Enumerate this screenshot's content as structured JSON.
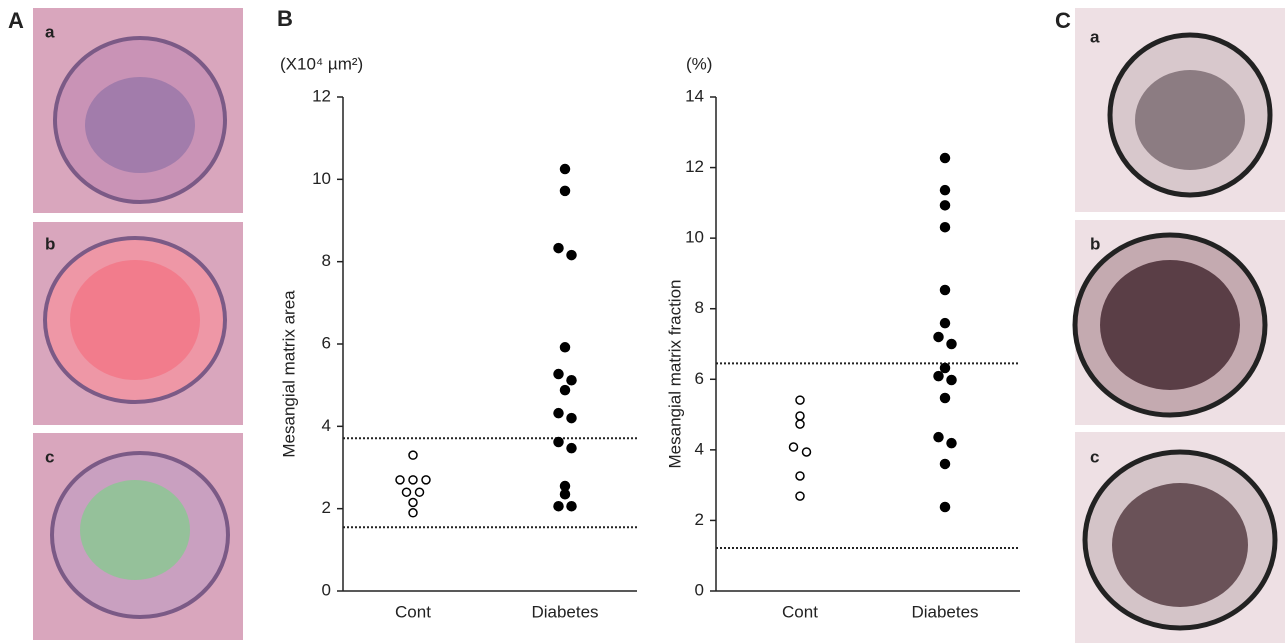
{
  "figure": {
    "panel_a": {
      "label": "A",
      "tiles": [
        "a",
        "b",
        "c"
      ]
    },
    "panel_b": {
      "label": "B"
    },
    "panel_c": {
      "label": "C",
      "tiles": [
        "a",
        "b",
        "c"
      ]
    }
  },
  "chart_data": [
    {
      "type": "strip",
      "unit_label": "(X10⁴ µm²)",
      "y_label": "Mesangial matrix area",
      "categories": [
        "Cont",
        "Diabetes"
      ],
      "markers": [
        "open",
        "filled"
      ],
      "color": "#000000",
      "values": [
        [
          3.3,
          2.7,
          2.7,
          2.7,
          2.4,
          2.4,
          2.15,
          1.9
        ],
        [
          10.25,
          9.72,
          8.33,
          8.16,
          5.92,
          5.27,
          5.12,
          4.88,
          4.32,
          4.2,
          3.62,
          3.47,
          2.55,
          2.35,
          2.06,
          2.06
        ]
      ],
      "reference_lines": [
        3.71,
        1.55
      ],
      "ylim": [
        0,
        12
      ],
      "yticks": [
        0,
        2,
        4,
        6,
        8,
        10,
        12
      ]
    },
    {
      "type": "strip",
      "unit_label": "(%)",
      "y_label": "Mesangial matrix fraction",
      "categories": [
        "Cont",
        "Diabetes"
      ],
      "markers": [
        "open",
        "filled"
      ],
      "color": "#000000",
      "values": [
        [
          5.41,
          4.96,
          4.73,
          4.08,
          3.94,
          3.26,
          2.69
        ],
        [
          12.27,
          11.36,
          10.93,
          10.31,
          8.53,
          7.59,
          7.2,
          7.0,
          6.32,
          6.09,
          5.98,
          5.47,
          4.36,
          4.19,
          3.6,
          2.38
        ]
      ],
      "reference_lines": [
        6.45,
        1.22
      ],
      "ylim": [
        0,
        14
      ],
      "yticks": [
        0,
        2,
        4,
        6,
        8,
        10,
        12,
        14
      ]
    }
  ]
}
